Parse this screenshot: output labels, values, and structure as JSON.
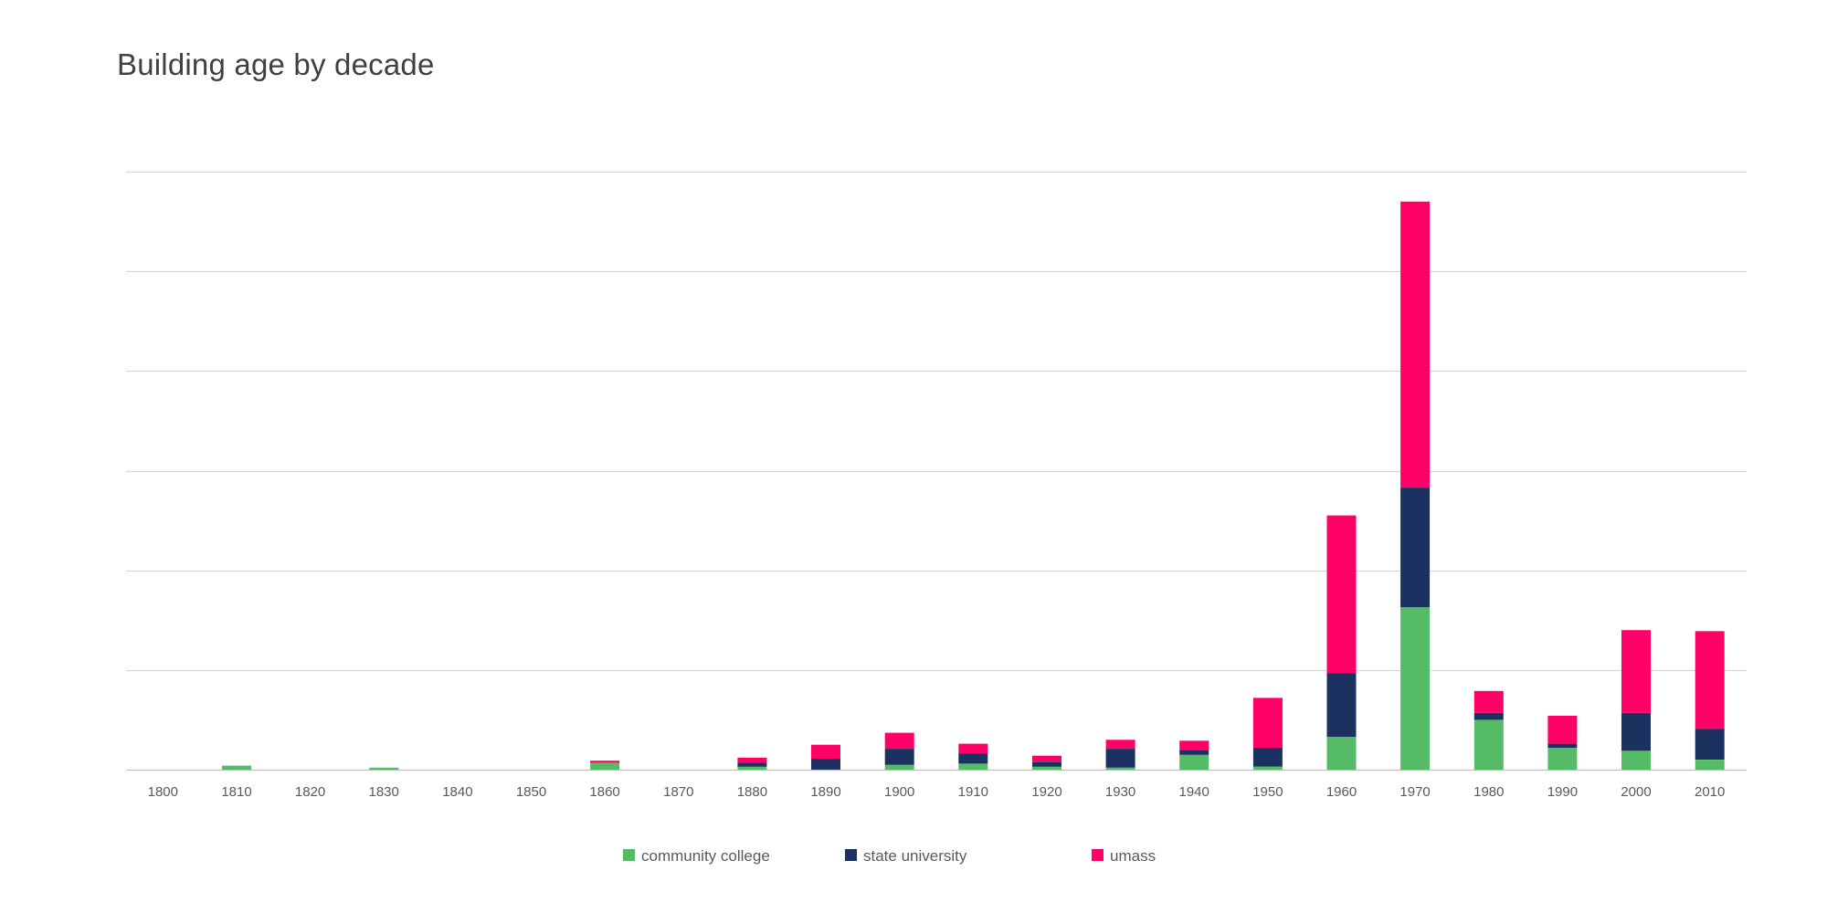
{
  "chart_data": {
    "type": "bar",
    "stacked": true,
    "title": "Building age by decade",
    "xlabel": "",
    "ylabel": "",
    "categories": [
      "1800",
      "1810",
      "1820",
      "1830",
      "1840",
      "1850",
      "1860",
      "1870",
      "1880",
      "1890",
      "1900",
      "1910",
      "1920",
      "1930",
      "1940",
      "1950",
      "1960",
      "1970",
      "1980",
      "1990",
      "2000",
      "2010"
    ],
    "series": [
      {
        "name": "community college",
        "color": "#55bb66",
        "values": [
          0,
          0.4,
          0,
          0.2,
          0,
          0,
          0.7,
          0,
          0.3,
          0,
          0.5,
          0.6,
          0.3,
          0.2,
          1.5,
          0.3,
          3.3,
          16.3,
          5.0,
          2.2,
          1.9,
          1.0
        ]
      },
      {
        "name": "state university",
        "color": "#1b3160",
        "values": [
          0,
          0,
          0,
          0,
          0,
          0,
          0,
          0,
          0.4,
          1.1,
          1.6,
          1.0,
          0.5,
          1.9,
          0.5,
          1.9,
          6.4,
          12.0,
          0.7,
          0.4,
          3.8,
          3.1
        ]
      },
      {
        "name": "umass",
        "color": "#ff0066",
        "values": [
          0,
          0,
          0,
          0,
          0,
          0,
          0.2,
          0,
          0.5,
          1.4,
          1.6,
          1.0,
          0.6,
          0.9,
          0.9,
          5.0,
          15.8,
          28.7,
          2.2,
          2.8,
          8.3,
          9.8
        ]
      }
    ],
    "ylim": [
      0,
      60
    ],
    "yticks": [
      0,
      10,
      20,
      30,
      40,
      50,
      60
    ],
    "ytick_labels_visible": false,
    "grid": true,
    "legend": "bottom"
  }
}
